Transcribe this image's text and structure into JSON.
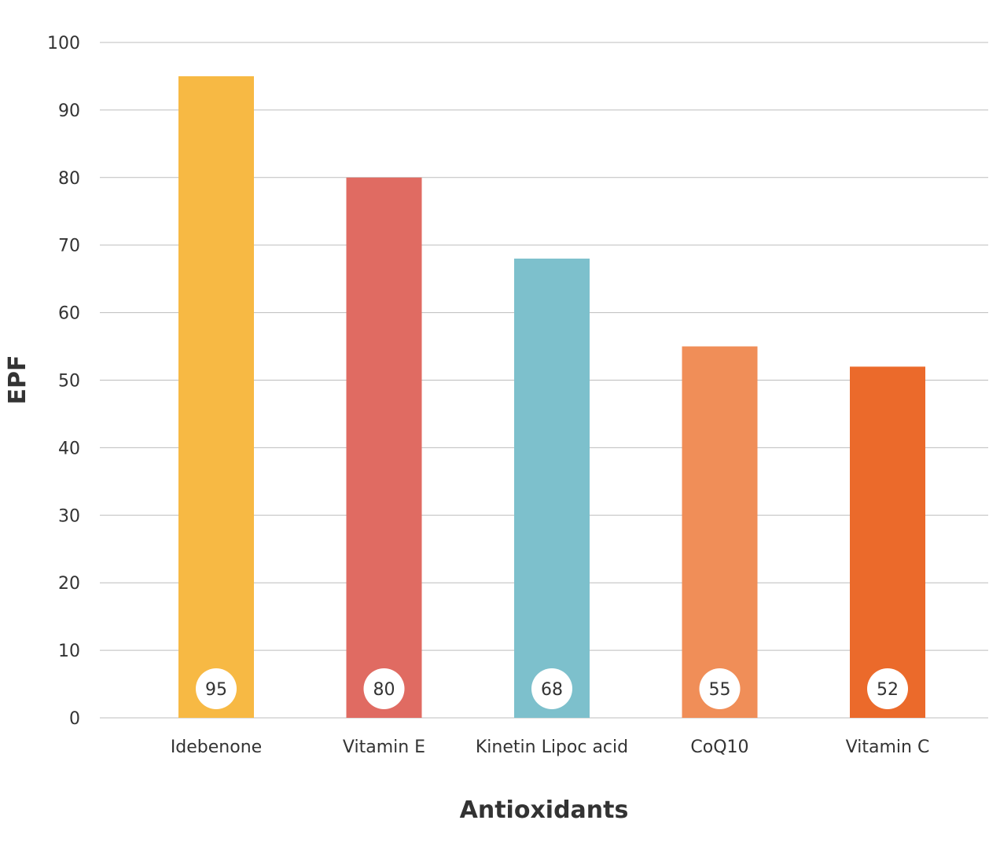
{
  "chart_data": {
    "type": "bar",
    "title": "",
    "xlabel": "Antioxidants",
    "ylabel": "EPF",
    "categories": [
      "Idebenone",
      "Vitamin E",
      "Kinetin Lipoc acid",
      "CoQ10",
      "Vitamin C"
    ],
    "values": [
      95,
      80,
      68,
      55,
      52
    ],
    "data_labels": [
      "95",
      "80",
      "68",
      "55",
      "52"
    ],
    "colors": [
      "#F7B944",
      "#E06B62",
      "#7DC0CC",
      "#F08E58",
      "#EB6A2B"
    ],
    "ylim": [
      0,
      100
    ],
    "yticks": [
      0,
      10,
      20,
      30,
      40,
      50,
      60,
      70,
      80,
      90,
      100
    ],
    "ytick_labels": [
      "0",
      "10",
      "20",
      "30",
      "40",
      "50",
      "60",
      "70",
      "80",
      "90",
      "100"
    ],
    "grid": true,
    "legend": "none",
    "data_label_position": "bottom-inside-circle"
  }
}
